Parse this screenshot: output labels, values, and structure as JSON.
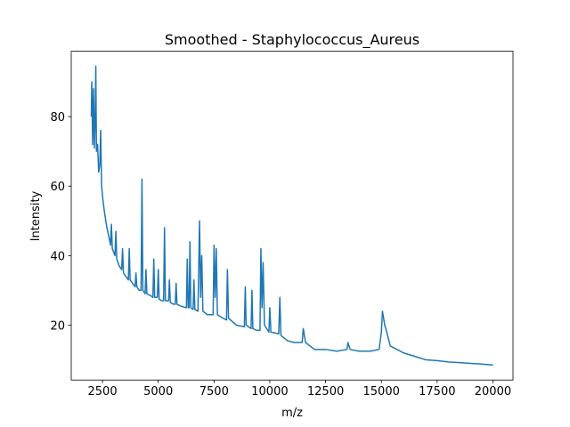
{
  "chart_data": {
    "type": "line",
    "title": "Smoothed - Staphylococcus_Aureus",
    "x_label": "m/z",
    "y_label": "Intensity",
    "x": [
      2000,
      2020,
      2060,
      2100,
      2140,
      2180,
      2200,
      2230,
      2280,
      2330,
      2380,
      2420,
      2460,
      2520,
      2600,
      2700,
      2800,
      2860,
      2900,
      2940,
      3000,
      3060,
      3100,
      3140,
      3250,
      3360,
      3400,
      3440,
      3550,
      3660,
      3700,
      3740,
      3850,
      3960,
      4000,
      4040,
      4150,
      4230,
      4270,
      4310,
      4410,
      4450,
      4490,
      4650,
      4760,
      4800,
      4840,
      4960,
      5000,
      5040,
      5150,
      5240,
      5280,
      5320,
      5460,
      5500,
      5540,
      5700,
      5760,
      5800,
      5840,
      6000,
      6260,
      6300,
      6340,
      6380,
      6420,
      6460,
      6560,
      6600,
      6640,
      6780,
      6850,
      6900,
      6950,
      7000,
      7200,
      7460,
      7500,
      7550,
      7600,
      7650,
      7900,
      8060,
      8100,
      8150,
      8500,
      8860,
      8900,
      8940,
      9160,
      9200,
      9240,
      9400,
      9560,
      9600,
      9650,
      9700,
      9760,
      9960,
      10000,
      10050,
      10400,
      10450,
      10500,
      10800,
      11100,
      11450,
      11500,
      11600,
      12000,
      12500,
      13000,
      13460,
      13500,
      13600,
      14000,
      14500,
      14900,
      15000,
      15050,
      15150,
      15200,
      15400,
      15700,
      16000,
      16500,
      17000,
      17500,
      18000,
      18500,
      19000,
      19500,
      20000
    ],
    "series": [
      {
        "name": "Smoothed",
        "color": "#1f77b4",
        "values": [
          80,
          90,
          72,
          88,
          71,
          82,
          94.5,
          70,
          72,
          64,
          66,
          76,
          60,
          56,
          52,
          48,
          45,
          43,
          49,
          42,
          41,
          40,
          47,
          39,
          37,
          36,
          42,
          35,
          34,
          33,
          42,
          33,
          32,
          31,
          35,
          31,
          30,
          30,
          62,
          30,
          29,
          36,
          29,
          28.5,
          28,
          39,
          28,
          28,
          36,
          27.5,
          27,
          27,
          48,
          27,
          27,
          33,
          26.5,
          26,
          26,
          32,
          26,
          25.5,
          25,
          39,
          25,
          25,
          44,
          25,
          24.5,
          33,
          24.5,
          24,
          50,
          28,
          40,
          24,
          23,
          23,
          43,
          28,
          42,
          23,
          22,
          21.5,
          36,
          22,
          20,
          19.5,
          31,
          20,
          19,
          30,
          19,
          18.5,
          18.5,
          42,
          25,
          38,
          20,
          18,
          25,
          18,
          17.5,
          28,
          17,
          15.5,
          15,
          15,
          19,
          15,
          13,
          13,
          12.5,
          13,
          15,
          13,
          12.5,
          12.5,
          13,
          18,
          24,
          20,
          19,
          14,
          13,
          12,
          11,
          10,
          9.8,
          9.4,
          9.2,
          9,
          8.8,
          8.5
        ]
      }
    ],
    "xlim": [
      1100,
      20900
    ],
    "ylim": [
      4.2,
      98.8
    ],
    "xticks": [
      2500,
      5000,
      7500,
      10000,
      12500,
      15000,
      17500,
      20000
    ],
    "yticks": [
      20,
      40,
      60,
      80
    ]
  }
}
